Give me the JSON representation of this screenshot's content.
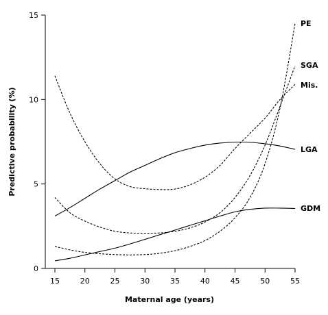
{
  "chart_data": {
    "type": "line",
    "xlabel": "Maternal age (years)",
    "ylabel": "Predictive probability (%)",
    "xlim": [
      15,
      55
    ],
    "ylim": [
      0,
      15
    ],
    "x_ticks": [
      "15",
      "20",
      "25",
      "30",
      "35",
      "40",
      "45",
      "50",
      "55"
    ],
    "y_ticks": [
      "0",
      "5",
      "10",
      "15"
    ],
    "grid": false,
    "legend": "direct labels at right end of lines",
    "x": [
      15,
      17.5,
      20,
      22.5,
      25,
      27.5,
      30,
      32.5,
      35,
      37.5,
      40,
      42.5,
      45,
      47.5,
      50,
      52.5,
      55
    ],
    "series": [
      {
        "name": "PE",
        "style": "dashed",
        "values": [
          1.3,
          1.1,
          0.95,
          0.87,
          0.82,
          0.8,
          0.82,
          0.9,
          1.05,
          1.3,
          1.65,
          2.2,
          3.0,
          4.2,
          6.2,
          9.5,
          14.5
        ]
      },
      {
        "name": "SGA",
        "style": "dashed",
        "values": [
          4.2,
          3.3,
          2.8,
          2.45,
          2.2,
          2.1,
          2.08,
          2.1,
          2.2,
          2.4,
          2.75,
          3.3,
          4.2,
          5.5,
          7.3,
          9.6,
          12.0
        ]
      },
      {
        "name": "Mis.",
        "style": "dashed",
        "values": [
          11.4,
          9.2,
          7.5,
          6.2,
          5.3,
          4.85,
          4.72,
          4.67,
          4.7,
          4.95,
          5.4,
          6.1,
          7.1,
          8.0,
          8.9,
          10.0,
          10.9
        ]
      },
      {
        "name": "LGA",
        "style": "solid",
        "values": [
          3.1,
          3.6,
          4.15,
          4.7,
          5.2,
          5.7,
          6.1,
          6.5,
          6.85,
          7.1,
          7.3,
          7.42,
          7.48,
          7.47,
          7.38,
          7.25,
          7.05
        ]
      },
      {
        "name": "GDM",
        "style": "solid",
        "values": [
          0.45,
          0.6,
          0.8,
          1.0,
          1.2,
          1.45,
          1.72,
          2.0,
          2.27,
          2.55,
          2.82,
          3.1,
          3.35,
          3.5,
          3.57,
          3.57,
          3.55
        ]
      }
    ]
  },
  "labels": {
    "PE": "PE",
    "SGA": "SGA",
    "Mis": "Mis.",
    "LGA": "LGA",
    "GDM": "GDM"
  }
}
